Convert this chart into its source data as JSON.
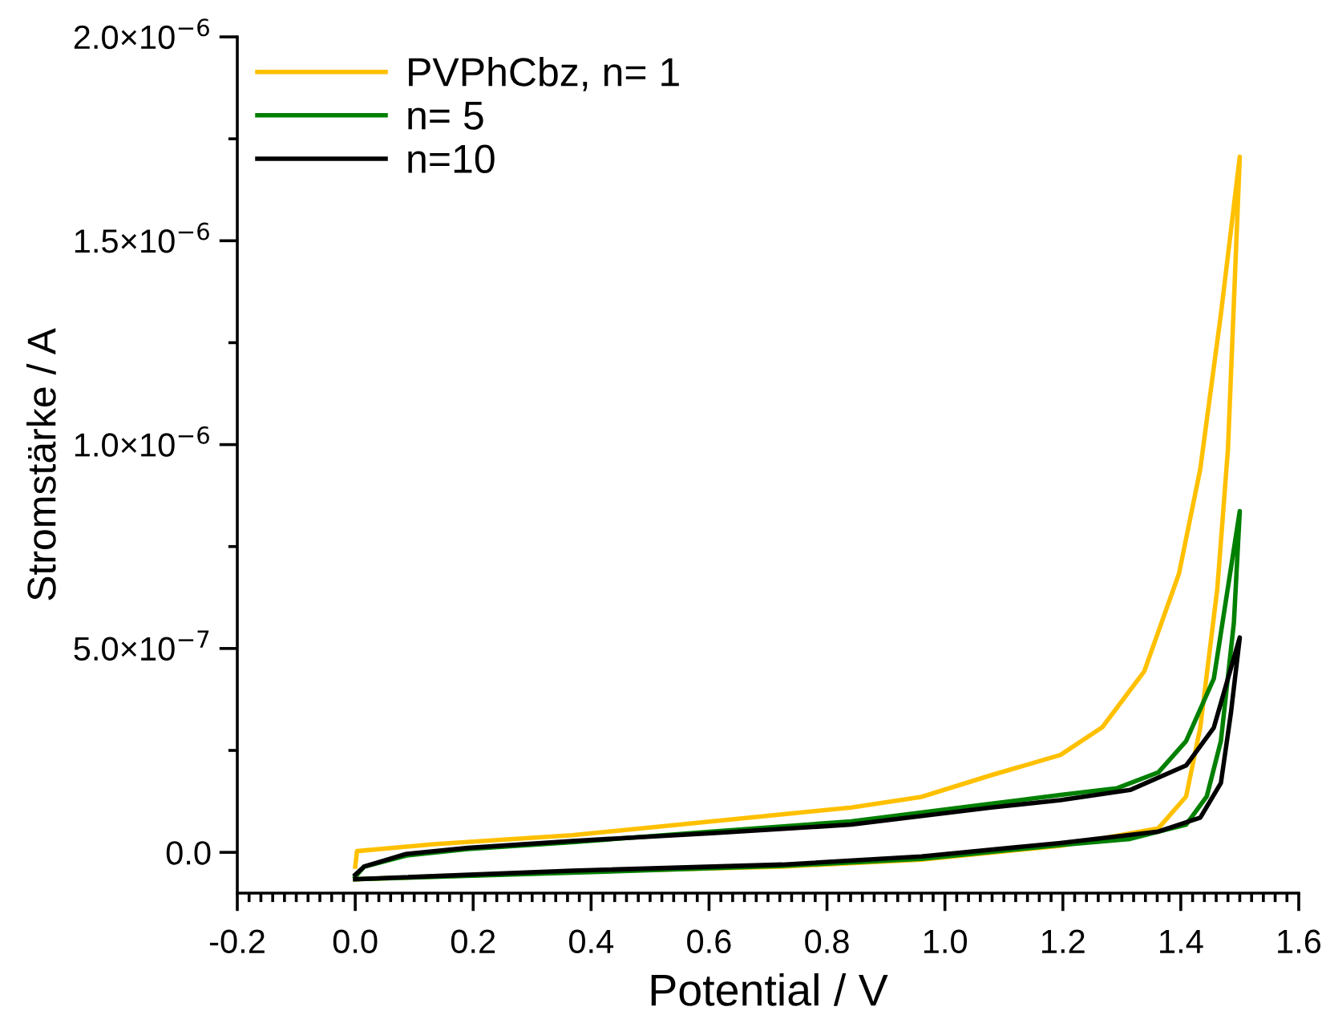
{
  "chart_data": {
    "type": "line",
    "xlabel": "Potential / V",
    "ylabel": "Stromstärke / A",
    "xlim": [
      -0.2,
      1.6
    ],
    "ylim": [
      -1e-07,
      2e-06
    ],
    "xticks": [
      {
        "value": -0.2,
        "label": "-0.2"
      },
      {
        "value": 0.0,
        "label": "0.0"
      },
      {
        "value": 0.2,
        "label": "0.2"
      },
      {
        "value": 0.4,
        "label": "0.4"
      },
      {
        "value": 0.6,
        "label": "0.6"
      },
      {
        "value": 0.8,
        "label": "0.8"
      },
      {
        "value": 1.0,
        "label": "1.0"
      },
      {
        "value": 1.2,
        "label": "1.2"
      },
      {
        "value": 1.4,
        "label": "1.4"
      },
      {
        "value": 1.6,
        "label": "1.6"
      }
    ],
    "yticks": [
      {
        "value": 0.0,
        "label": "0.0"
      },
      {
        "value": 5e-07,
        "label": "5.0×10$^{−7}$"
      },
      {
        "value": 1e-06,
        "label": "1.0×10$^{−6}$"
      },
      {
        "value": 1.5e-06,
        "label": "1.5×10$^{−6}$"
      },
      {
        "value": 2e-06,
        "label": "2.0×10$^{−6}$"
      }
    ],
    "grid": false,
    "legend": "top left",
    "marker": "none",
    "line_style": "solid",
    "series": [
      {
        "name": "PVPhCbz, n= 1",
        "color": "#ffc000",
        "x": [
          0,
          0.003,
          0.133,
          0.368,
          0.605,
          0.841,
          0.96,
          1.078,
          1.196,
          1.267,
          1.338,
          1.397,
          1.433,
          1.468,
          1.5,
          1.48,
          1.462,
          1.433,
          1.409,
          1.362,
          1.196,
          0.96,
          0.724,
          0.368,
          0
        ],
        "values": [
          -3.5e-08,
          3e-09,
          2e-08,
          4.2e-08,
          7.6e-08,
          1.1e-07,
          1.36e-07,
          1.89e-07,
          2.39e-07,
          3.07e-07,
          4.44e-07,
          6.84e-07,
          9.4e-07,
          1.32e-06,
          1.706e-06,
          9.9e-07,
          6.48e-07,
          3.06e-07,
          1.37e-07,
          5.9e-08,
          1.6e-08,
          -1.8e-08,
          -3.5e-08,
          -4.8e-08,
          -6.6e-08
        ]
      },
      {
        "name": "n= 5",
        "color": "#008000",
        "x": [
          0,
          0.015,
          0.086,
          0.191,
          0.368,
          0.605,
          0.841,
          1.078,
          1.196,
          1.291,
          1.362,
          1.409,
          1.456,
          1.5,
          1.49,
          1.468,
          1.444,
          1.409,
          1.314,
          1.196,
          0.96,
          0.724,
          0.368,
          0
        ],
        "values": [
          -6e-08,
          -3.5e-08,
          -8e-09,
          8e-09,
          2.5e-08,
          5.1e-08,
          7.6e-08,
          1.19e-07,
          1.41e-07,
          1.57e-07,
          1.96e-07,
          2.73e-07,
          4.26e-07,
          8.37e-07,
          5.63e-07,
          2.73e-07,
          1.37e-07,
          6.8e-08,
          3.3e-08,
          1.8e-08,
          -1.6e-08,
          -3.3e-08,
          -5e-08,
          -6.6e-08
        ]
      },
      {
        "name": "n=10",
        "color": "#000000",
        "x": [
          0,
          0.015,
          0.086,
          0.191,
          0.368,
          0.605,
          0.841,
          1.078,
          1.196,
          1.314,
          1.409,
          1.456,
          1.5,
          1.485,
          1.468,
          1.433,
          1.362,
          1.196,
          0.96,
          0.724,
          0.368,
          0
        ],
        "values": [
          -5.5e-08,
          -3.5e-08,
          -4e-09,
          1.1e-08,
          2.8e-08,
          4.7e-08,
          6.8e-08,
          1.1e-07,
          1.28e-07,
          1.53e-07,
          2.13e-07,
          3.06e-07,
          5.27e-07,
          3.42e-07,
          1.7e-07,
          8.5e-08,
          5.1e-08,
          2.3e-08,
          -1e-08,
          -3e-08,
          -4.5e-08,
          -6.6e-08
        ]
      }
    ]
  }
}
